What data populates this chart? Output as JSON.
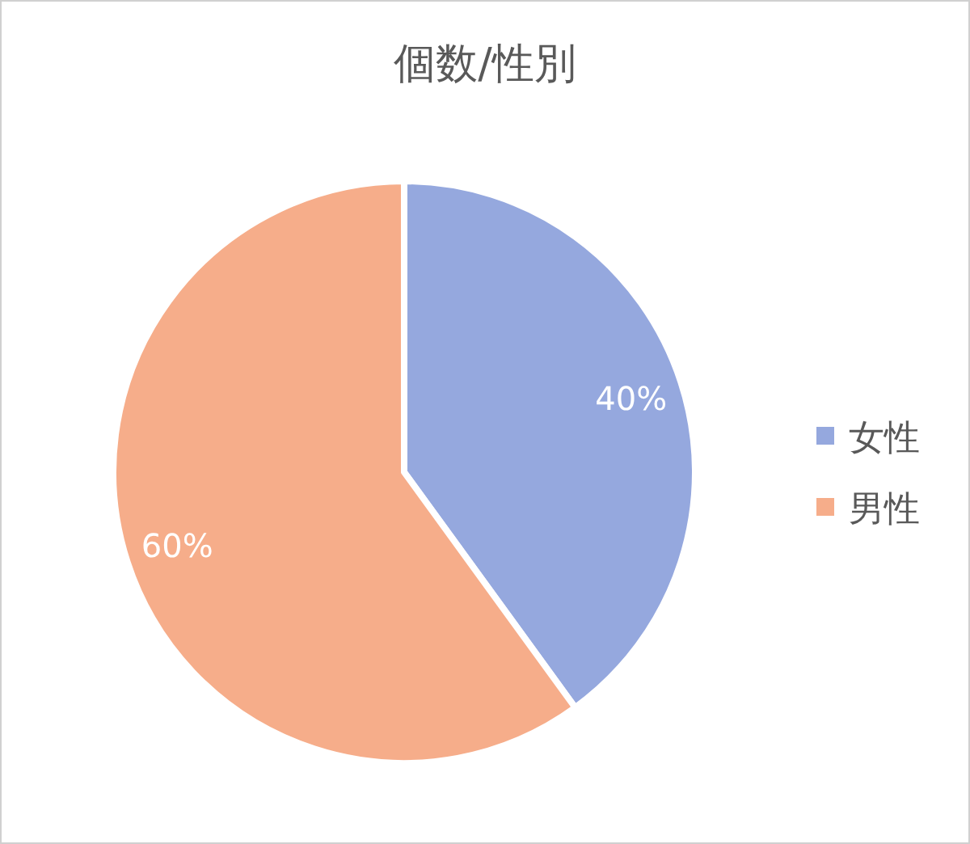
{
  "chart_data": {
    "type": "pie",
    "title": "個数/性別",
    "categories": [
      "女性",
      "男性"
    ],
    "values": [
      40,
      60
    ],
    "value_labels": [
      "40%",
      "60%"
    ],
    "colors": [
      "#95a8de",
      "#f6ad8a"
    ],
    "legend": "right"
  }
}
